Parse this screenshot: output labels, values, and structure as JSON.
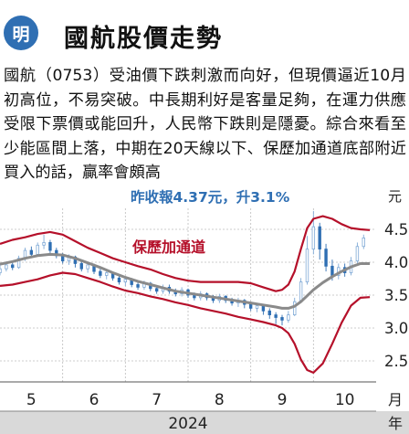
{
  "header": {
    "logo_text": "明",
    "title": "國航股價走勢",
    "accent_color": "#2f6fb3"
  },
  "article": {
    "text": "國航（0753）受油價下跌刺激而向好，但現價逼近10月初高位，不易突破。中長期利好是客量足夠，在運力供應受限下票價或能回升，人民幣下跌則是隱憂。綜合來看至少能區間上落，中期在20天線以下、保歷加通道底部附近買入的話，贏率會頗高"
  },
  "chart_data": {
    "type": "line",
    "title": "",
    "annotation_top": "昨收報4.37元，升3.1%",
    "annotation_band": "保歷加通道",
    "ylabel": "元",
    "xlabel_year": "2024",
    "xlabel_unit": "月\n年",
    "ylim": [
      2.18,
      4.82
    ],
    "yticks": [
      4.5,
      4.0,
      3.5,
      3.0,
      2.5
    ],
    "ytick_labels": [
      "4.5",
      "4.0",
      "3.5",
      "3.0",
      "2.5"
    ],
    "months": [
      "5",
      "6",
      "7",
      "8",
      "9",
      "10"
    ],
    "grid": true,
    "colors": {
      "bollinger": "#b5102a",
      "moving_average": "#8a8a8a",
      "candle_up": "#7fa9d6",
      "candle_down": "#2f6fb3",
      "annotation_top": "#2f6fb3",
      "annotation_band": "#b5102a"
    },
    "upper_band": [
      [
        0,
        4.28
      ],
      [
        4,
        4.34
      ],
      [
        8,
        4.38
      ],
      [
        12,
        4.43
      ],
      [
        16,
        4.46
      ],
      [
        20,
        4.42
      ],
      [
        24,
        4.32
      ],
      [
        28,
        4.22
      ],
      [
        32,
        4.14
      ],
      [
        36,
        4.06
      ],
      [
        40,
        4.0
      ],
      [
        44,
        3.94
      ],
      [
        48,
        3.89
      ],
      [
        52,
        3.82
      ],
      [
        56,
        3.76
      ],
      [
        60,
        3.72
      ],
      [
        64,
        3.7
      ],
      [
        68,
        3.7
      ],
      [
        72,
        3.7
      ],
      [
        76,
        3.7
      ],
      [
        80,
        3.68
      ],
      [
        84,
        3.62
      ],
      [
        88,
        3.56
      ],
      [
        90,
        3.58
      ],
      [
        92,
        3.66
      ],
      [
        94,
        3.86
      ],
      [
        96,
        4.2
      ],
      [
        98,
        4.52
      ],
      [
        100,
        4.66
      ],
      [
        103,
        4.7
      ],
      [
        106,
        4.66
      ],
      [
        109,
        4.58
      ],
      [
        112,
        4.52
      ],
      [
        115,
        4.5
      ],
      [
        118,
        4.49
      ]
    ],
    "lower_band": [
      [
        0,
        3.64
      ],
      [
        4,
        3.66
      ],
      [
        8,
        3.7
      ],
      [
        12,
        3.74
      ],
      [
        16,
        3.8
      ],
      [
        20,
        3.84
      ],
      [
        24,
        3.82
      ],
      [
        28,
        3.76
      ],
      [
        32,
        3.7
      ],
      [
        36,
        3.63
      ],
      [
        40,
        3.57
      ],
      [
        44,
        3.53
      ],
      [
        48,
        3.48
      ],
      [
        52,
        3.44
      ],
      [
        56,
        3.39
      ],
      [
        60,
        3.35
      ],
      [
        64,
        3.3
      ],
      [
        68,
        3.26
      ],
      [
        72,
        3.22
      ],
      [
        76,
        3.17
      ],
      [
        80,
        3.13
      ],
      [
        84,
        3.09
      ],
      [
        88,
        3.04
      ],
      [
        90,
        3.0
      ],
      [
        92,
        2.92
      ],
      [
        94,
        2.76
      ],
      [
        96,
        2.52
      ],
      [
        98,
        2.36
      ],
      [
        100,
        2.32
      ],
      [
        103,
        2.46
      ],
      [
        106,
        2.76
      ],
      [
        109,
        3.08
      ],
      [
        112,
        3.34
      ],
      [
        115,
        3.46
      ],
      [
        118,
        3.47
      ]
    ],
    "moving_average": [
      [
        0,
        3.97
      ],
      [
        4,
        4.01
      ],
      [
        8,
        4.06
      ],
      [
        12,
        4.1
      ],
      [
        16,
        4.12
      ],
      [
        20,
        4.11
      ],
      [
        24,
        4.06
      ],
      [
        28,
        3.99
      ],
      [
        32,
        3.92
      ],
      [
        36,
        3.84
      ],
      [
        40,
        3.77
      ],
      [
        44,
        3.71
      ],
      [
        48,
        3.66
      ],
      [
        52,
        3.61
      ],
      [
        56,
        3.56
      ],
      [
        60,
        3.53
      ],
      [
        64,
        3.5
      ],
      [
        68,
        3.47
      ],
      [
        72,
        3.44
      ],
      [
        76,
        3.41
      ],
      [
        80,
        3.38
      ],
      [
        84,
        3.35
      ],
      [
        88,
        3.32
      ],
      [
        90,
        3.3
      ],
      [
        92,
        3.3
      ],
      [
        94,
        3.33
      ],
      [
        96,
        3.4
      ],
      [
        98,
        3.49
      ],
      [
        100,
        3.58
      ],
      [
        103,
        3.69
      ],
      [
        106,
        3.78
      ],
      [
        109,
        3.86
      ],
      [
        112,
        3.93
      ],
      [
        115,
        3.98
      ],
      [
        118,
        3.98
      ]
    ],
    "candles": [
      [
        0,
        3.84,
        3.9,
        3.8,
        3.97
      ],
      [
        2,
        3.9,
        3.96,
        3.86,
        4.01
      ],
      [
        4,
        3.96,
        3.92,
        3.88,
        4.02
      ],
      [
        6,
        3.92,
        4.06,
        3.9,
        4.1
      ],
      [
        8,
        4.06,
        4.18,
        4.02,
        4.22
      ],
      [
        10,
        4.18,
        4.12,
        4.08,
        4.24
      ],
      [
        12,
        4.12,
        4.26,
        4.1,
        4.3
      ],
      [
        14,
        4.26,
        4.3,
        4.2,
        4.42
      ],
      [
        16,
        4.3,
        4.18,
        4.14,
        4.34
      ],
      [
        18,
        4.18,
        4.1,
        4.06,
        4.22
      ],
      [
        20,
        4.1,
        4.02,
        3.98,
        4.14
      ],
      [
        22,
        4.02,
        4.08,
        3.96,
        4.12
      ],
      [
        24,
        4.08,
        3.98,
        3.92,
        4.1
      ],
      [
        26,
        3.98,
        3.9,
        3.86,
        4.02
      ],
      [
        28,
        3.9,
        3.96,
        3.84,
        4.0
      ],
      [
        30,
        3.96,
        3.86,
        3.82,
        3.98
      ],
      [
        32,
        3.86,
        3.8,
        3.76,
        3.9
      ],
      [
        34,
        3.8,
        3.84,
        3.74,
        3.88
      ],
      [
        36,
        3.84,
        3.76,
        3.72,
        3.86
      ],
      [
        38,
        3.76,
        3.7,
        3.66,
        3.8
      ],
      [
        40,
        3.7,
        3.74,
        3.64,
        3.78
      ],
      [
        42,
        3.74,
        3.66,
        3.62,
        3.76
      ],
      [
        44,
        3.66,
        3.62,
        3.58,
        3.7
      ],
      [
        46,
        3.62,
        3.68,
        3.58,
        3.72
      ],
      [
        48,
        3.68,
        3.6,
        3.56,
        3.7
      ],
      [
        50,
        3.6,
        3.56,
        3.52,
        3.64
      ],
      [
        52,
        3.56,
        3.62,
        3.52,
        3.66
      ],
      [
        54,
        3.62,
        3.56,
        3.52,
        3.66
      ],
      [
        56,
        3.56,
        3.52,
        3.48,
        3.6
      ],
      [
        58,
        3.52,
        3.58,
        3.48,
        3.62
      ],
      [
        60,
        3.58,
        3.5,
        3.46,
        3.6
      ],
      [
        62,
        3.5,
        3.46,
        3.42,
        3.54
      ],
      [
        64,
        3.46,
        3.52,
        3.42,
        3.56
      ],
      [
        66,
        3.52,
        3.46,
        3.42,
        3.54
      ],
      [
        68,
        3.46,
        3.42,
        3.38,
        3.5
      ],
      [
        70,
        3.42,
        3.48,
        3.38,
        3.52
      ],
      [
        72,
        3.48,
        3.42,
        3.38,
        3.5
      ],
      [
        74,
        3.42,
        3.38,
        3.34,
        3.46
      ],
      [
        76,
        3.38,
        3.42,
        3.32,
        3.46
      ],
      [
        78,
        3.42,
        3.36,
        3.3,
        3.44
      ],
      [
        80,
        3.36,
        3.3,
        3.26,
        3.4
      ],
      [
        82,
        3.3,
        3.34,
        3.24,
        3.38
      ],
      [
        84,
        3.34,
        3.26,
        3.2,
        3.36
      ],
      [
        86,
        3.26,
        3.2,
        3.14,
        3.3
      ],
      [
        88,
        3.2,
        3.16,
        3.06,
        3.24
      ],
      [
        90,
        3.16,
        3.12,
        3.04,
        3.2
      ],
      [
        92,
        3.12,
        3.2,
        3.08,
        3.26
      ],
      [
        94,
        3.2,
        3.4,
        3.18,
        3.46
      ],
      [
        96,
        3.4,
        3.7,
        3.38,
        3.76
      ],
      [
        98,
        3.7,
        4.2,
        3.66,
        4.4
      ],
      [
        100,
        4.2,
        4.54,
        4.12,
        4.78
      ],
      [
        102,
        4.54,
        4.2,
        4.04,
        4.6
      ],
      [
        104,
        4.2,
        3.94,
        3.86,
        4.28
      ],
      [
        106,
        3.94,
        3.8,
        3.72,
        4.04
      ],
      [
        108,
        3.8,
        3.92,
        3.74,
        3.98
      ],
      [
        110,
        3.92,
        3.84,
        3.78,
        3.98
      ],
      [
        112,
        3.84,
        4.02,
        3.8,
        4.08
      ],
      [
        114,
        4.02,
        4.24,
        3.98,
        4.3
      ],
      [
        116,
        4.24,
        4.37,
        4.2,
        4.42
      ]
    ]
  }
}
